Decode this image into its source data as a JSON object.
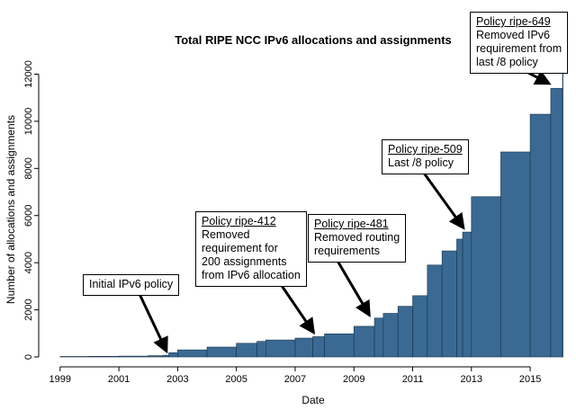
{
  "chart_data": {
    "type": "bar",
    "title": "Total RIPE NCC IPv6 allocations and assignments",
    "xlabel": "Date",
    "ylabel": "Number of allocations and assignments",
    "xlim": [
      1998.7,
      2016.1
    ],
    "ylim": [
      0,
      12400
    ],
    "x_ticks": [
      1999,
      2001,
      2003,
      2005,
      2007,
      2009,
      2011,
      2013,
      2015
    ],
    "y_ticks": [
      0,
      2000,
      4000,
      6000,
      8000,
      10000,
      12000
    ],
    "grid": false,
    "colors": {
      "bar_fill": "#3a6a93",
      "bar_edge": "#16324a"
    },
    "series": [
      {
        "x": [
          1999.0,
          2000.0,
          2001.0,
          2002.0,
          2002.5,
          2002.7,
          2003.0,
          2004.0,
          2005.0,
          2005.7,
          2006.0,
          2007.0,
          2007.6,
          2008.0,
          2009.0,
          2009.7,
          2010.0,
          2010.5,
          2011.0,
          2011.5,
          2012.0,
          2012.5,
          2012.7,
          2013.0,
          2014.0,
          2015.0,
          2015.7,
          2016.1
        ],
        "values": [
          20,
          25,
          35,
          55,
          70,
          180,
          300,
          420,
          580,
          660,
          720,
          800,
          860,
          980,
          1300,
          1650,
          1850,
          2150,
          2600,
          3900,
          4500,
          5000,
          5300,
          6800,
          8700,
          10300,
          11400,
          12400
        ]
      }
    ],
    "annotations": [
      {
        "id": "ripe-initial",
        "policy": "",
        "description": "Initial IPv6 policy",
        "x": 2002.6,
        "y": 70
      },
      {
        "id": "ripe-412",
        "policy": "Policy ripe-412",
        "description": "Removed\nrequirement for\n200 assignments\nfrom IPv6 allocation",
        "x": 2007.6,
        "y": 860
      },
      {
        "id": "ripe-481",
        "policy": "Policy ripe-481",
        "description": "Removed routing\nrequirements",
        "x": 2009.5,
        "y": 1600
      },
      {
        "id": "ripe-509",
        "policy": "Policy ripe-509",
        "description": "Last /8 policy",
        "x": 2012.7,
        "y": 5300
      },
      {
        "id": "ripe-649",
        "policy": "Policy ripe-649",
        "description": "Removed IPv6\nrequirement from\nlast /8 policy",
        "x": 2015.6,
        "y": 11400
      }
    ]
  }
}
